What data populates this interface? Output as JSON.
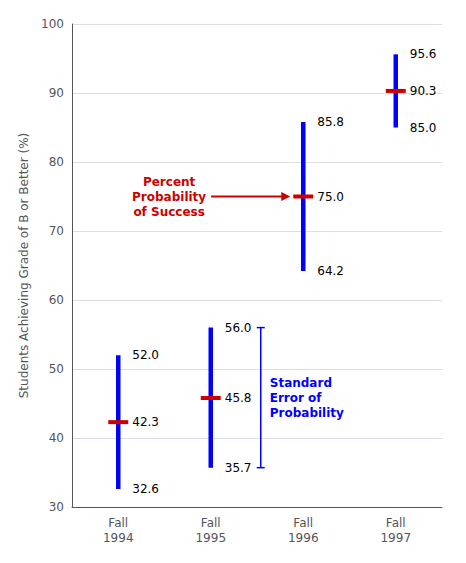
{
  "chart_data": {
    "type": "range",
    "categories": [
      "Fall\n1994",
      "Fall\n1995",
      "Fall\n1996",
      "Fall\n1997"
    ],
    "series": [
      {
        "type": "error_bar",
        "color": "#0000FF",
        "lower": [
          32.6,
          35.7,
          64.2,
          85.0
        ],
        "upper": [
          52.0,
          56.0,
          85.8,
          95.6
        ],
        "lower_labels": [
          "32.6",
          "35.7",
          "64.2",
          "85.0"
        ],
        "upper_labels": [
          "52.0",
          "56.0",
          "85.8",
          "95.6"
        ]
      },
      {
        "type": "marker",
        "color": "#CC0000",
        "values": [
          42.3,
          45.8,
          75.0,
          90.3
        ],
        "value_labels": [
          "42.3",
          "45.8",
          "75.0",
          "90.3"
        ]
      }
    ],
    "data_labels": true,
    "ylabel": "Students Achieving Grade of B or Better (%)",
    "ylim": [
      30,
      100
    ],
    "yticks": [
      30,
      40,
      50,
      60,
      70,
      80,
      90,
      100
    ],
    "grid": true,
    "annotations": [
      {
        "text": "Percent\nProbability\nof Success",
        "color": "#CC0000",
        "category": "Fall\n1996",
        "y": 75.0
      },
      {
        "text": "Standard\nError of\nProbability",
        "color": "#0000FF",
        "category": "Fall\n1995",
        "ymin": 35.7,
        "ymax": 56.0
      }
    ]
  }
}
